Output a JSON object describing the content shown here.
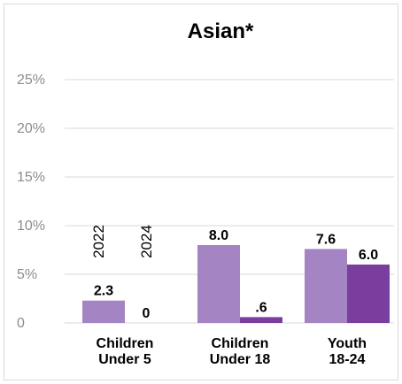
{
  "chart_data": {
    "type": "bar",
    "title": "Asian*",
    "categories": [
      "Children\nUnder 5",
      "Children\nUnder 18",
      "Youth\n18-24"
    ],
    "series": [
      {
        "name": "2022",
        "values": [
          2.3,
          8.0,
          7.6
        ],
        "labels": [
          "2.3",
          "8.0",
          "7.6"
        ],
        "color": "#a584c4"
      },
      {
        "name": "2024",
        "values": [
          0,
          0.6,
          6.0
        ],
        "labels": [
          "0",
          ".6",
          "6.0"
        ],
        "color": "#7a3f9e"
      }
    ],
    "y_ticks": [
      "0",
      "5%",
      "10%",
      "15%",
      "20%",
      "25%"
    ],
    "ylim": [
      0,
      25
    ],
    "grid": true,
    "legend_placement": "inside-first-category-vertical"
  }
}
